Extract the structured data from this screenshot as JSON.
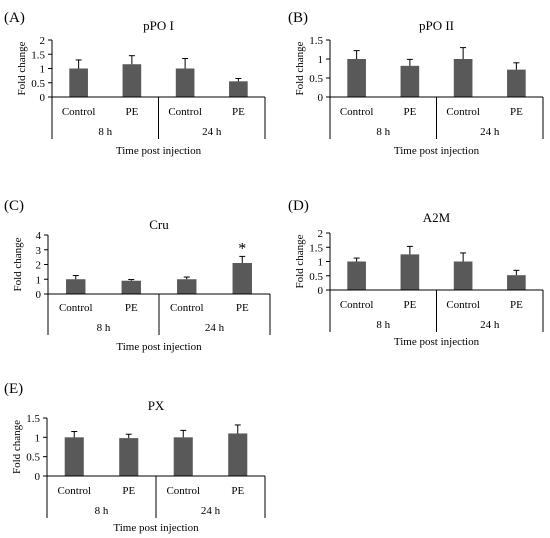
{
  "chart_data": [
    {
      "panel": "(A)",
      "title": "pPO I",
      "type": "bar",
      "categories": [
        "Control",
        "PE",
        "Control",
        "PE"
      ],
      "groups": [
        "8 h",
        "24 h"
      ],
      "values": [
        1.0,
        1.15,
        1.0,
        0.55
      ],
      "errors": [
        0.3,
        0.3,
        0.35,
        0.1
      ],
      "ylim": [
        0,
        2
      ],
      "yticks": [
        0,
        0.5,
        1,
        1.5,
        2
      ],
      "ylabel": "Fold change",
      "xlabel": "Time post injection",
      "significance": [
        "",
        "",
        "",
        ""
      ]
    },
    {
      "panel": "(B)",
      "title": "pPO II",
      "type": "bar",
      "categories": [
        "Control",
        "PE",
        "Control",
        "PE"
      ],
      "groups": [
        "8 h",
        "24 h"
      ],
      "values": [
        1.0,
        0.82,
        1.0,
        0.72
      ],
      "errors": [
        0.22,
        0.17,
        0.3,
        0.18
      ],
      "ylim": [
        0,
        1.5
      ],
      "yticks": [
        0,
        0.5,
        1,
        1.5
      ],
      "ylabel": "Fold change",
      "xlabel": "Time post injection",
      "significance": [
        "",
        "",
        "",
        ""
      ]
    },
    {
      "panel": "(C)",
      "title": "Cru",
      "type": "bar",
      "categories": [
        "Control",
        "PE",
        "Control",
        "PE"
      ],
      "groups": [
        "8 h",
        "24 h"
      ],
      "values": [
        1.0,
        0.9,
        1.0,
        2.1
      ],
      "errors": [
        0.25,
        0.08,
        0.15,
        0.45
      ],
      "ylim": [
        0,
        4
      ],
      "yticks": [
        0,
        1,
        2,
        3,
        4
      ],
      "ylabel": "Fold change",
      "xlabel": "Time post injection",
      "significance": [
        "",
        "",
        "",
        "*"
      ]
    },
    {
      "panel": "(D)",
      "title": "A2M",
      "type": "bar",
      "categories": [
        "Control",
        "PE",
        "Control",
        "PE"
      ],
      "groups": [
        "8 h",
        "24 h"
      ],
      "values": [
        1.0,
        1.25,
        1.0,
        0.52
      ],
      "errors": [
        0.12,
        0.28,
        0.3,
        0.17
      ],
      "ylim": [
        0,
        2
      ],
      "yticks": [
        0,
        0.5,
        1,
        1.5,
        2
      ],
      "ylabel": "Fold change",
      "xlabel": "Time post injection",
      "significance": [
        "",
        "",
        "",
        ""
      ]
    },
    {
      "panel": "(E)",
      "title": "PX",
      "type": "bar",
      "categories": [
        "Control",
        "PE",
        "Control",
        "PE"
      ],
      "groups": [
        "8 h",
        "24 h"
      ],
      "values": [
        1.0,
        0.98,
        1.0,
        1.1
      ],
      "errors": [
        0.15,
        0.1,
        0.18,
        0.22
      ],
      "ylim": [
        0,
        1.5
      ],
      "yticks": [
        0,
        0.5,
        1,
        1.5
      ],
      "ylabel": "Fold change",
      "xlabel": "Time post injection",
      "significance": [
        "",
        "",
        "",
        ""
      ]
    }
  ],
  "colors": {
    "bar": "#595959",
    "axis": "#000000"
  }
}
